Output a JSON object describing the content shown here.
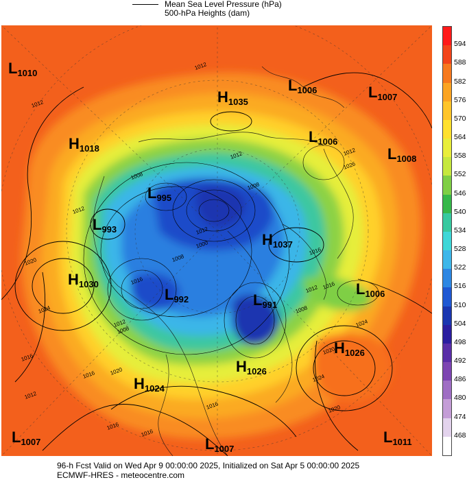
{
  "header": {
    "line1": "Mean Sea Level Pressure (hPa)",
    "line2": "500-hPa Heights (dam)"
  },
  "footer": {
    "line1": "96-h Fcst Valid on Wed Apr  9 00:00:00 2025, Initialized on Sat Apr  5 00:00:00 2025",
    "line2": "ECMWF-HRES  - meteocentre.com"
  },
  "colorbar": {
    "levels": [
      "594",
      "588",
      "582",
      "576",
      "570",
      "564",
      "558",
      "552",
      "546",
      "540",
      "534",
      "528",
      "522",
      "516",
      "510",
      "504",
      "498",
      "492",
      "486",
      "480",
      "474",
      "468"
    ],
    "colors": [
      "#ff1a1a",
      "#f3441a",
      "#f7791e",
      "#fba423",
      "#ffc52a",
      "#ffe12d",
      "#e9ee3a",
      "#c6e83e",
      "#7fcf45",
      "#36b84a",
      "#37c9a0",
      "#3ed7d8",
      "#3db7ea",
      "#2d87e3",
      "#1f58d3",
      "#1a36b0",
      "#2b1ea0",
      "#5a2ea8",
      "#7d45b2",
      "#9f6ec4",
      "#c49dd7",
      "#e3d3ed",
      "#ffffff"
    ]
  },
  "pressure_systems": [
    {
      "type": "L",
      "value": "1010"
    },
    {
      "type": "L",
      "value": "1006"
    },
    {
      "type": "L",
      "value": "1007"
    },
    {
      "type": "H",
      "value": "1035"
    },
    {
      "type": "H",
      "value": "1018"
    },
    {
      "type": "L",
      "value": "1006"
    },
    {
      "type": "L",
      "value": "1008"
    },
    {
      "type": "L",
      "value": "995"
    },
    {
      "type": "L",
      "value": "993"
    },
    {
      "type": "H",
      "value": "1037"
    },
    {
      "type": "H",
      "value": "1030"
    },
    {
      "type": "L",
      "value": "992"
    },
    {
      "type": "L",
      "value": "991"
    },
    {
      "type": "L",
      "value": "1006"
    },
    {
      "type": "H",
      "value": "1026"
    },
    {
      "type": "H",
      "value": "1026"
    },
    {
      "type": "H",
      "value": "1024"
    },
    {
      "type": "L",
      "value": "1007"
    },
    {
      "type": "L",
      "value": "1007"
    },
    {
      "type": "L",
      "value": "1011"
    }
  ],
  "contour_labels": [
    "1012",
    "1012",
    "1008",
    "1012",
    "1012",
    "1008",
    "1026",
    "1012",
    "1020",
    "1016",
    "1024",
    "1012",
    "1008",
    "1016",
    "1008",
    "1000",
    "1016",
    "1012",
    "1008",
    "1024",
    "1016",
    "1012",
    "1020",
    "1024",
    "1020",
    "1016",
    "1016",
    "1016",
    "1016",
    "1012",
    "1020"
  ]
}
